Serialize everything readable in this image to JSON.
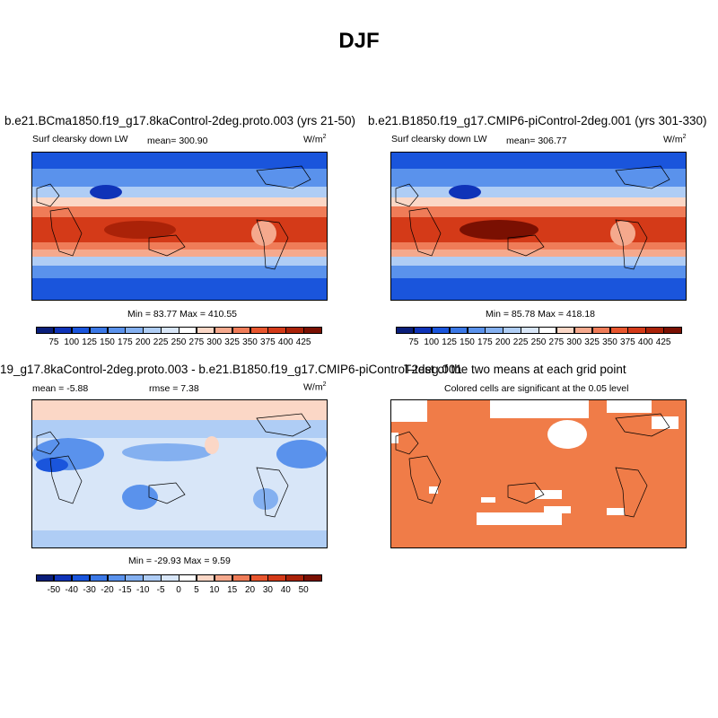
{
  "figure": {
    "title": "DJF"
  },
  "chart_data": [
    {
      "type": "heatmap",
      "title": "b.e21.BCma1850.f19_g17.8kaControl-2deg.proto.003 (yrs 21-50)",
      "left_label": "Surf clearsky down LW",
      "mean_label": "mean= 300.90",
      "units_base": "W/m",
      "units_exp": "2",
      "minmax_label": "Min =  83.77 Max = 410.55",
      "colorbar_levels": [
        "75",
        "100",
        "125",
        "150",
        "175",
        "200",
        "225",
        "250",
        "275",
        "300",
        "325",
        "350",
        "375",
        "400",
        "425"
      ],
      "colorbar_colors": [
        "#0a1e7a",
        "#0f33b8",
        "#1a55dc",
        "#3b78e6",
        "#5a92ec",
        "#84b0f0",
        "#afcdf5",
        "#d8e6f8",
        "#ffffff",
        "#fbd7c6",
        "#f5a98d",
        "#ef7c58",
        "#e8562e",
        "#d43a18",
        "#aa2208",
        "#7a1002"
      ]
    },
    {
      "type": "heatmap",
      "title": "b.e21.B1850.f19_g17.CMIP6-piControl-2deg.001 (yrs 301-330)",
      "left_label": "Surf clearsky down LW",
      "mean_label": "mean= 306.77",
      "units_base": "W/m",
      "units_exp": "2",
      "minmax_label": "Min =  85.78 Max = 418.18",
      "colorbar_levels": [
        "75",
        "100",
        "125",
        "150",
        "175",
        "200",
        "225",
        "250",
        "275",
        "300",
        "325",
        "350",
        "375",
        "400",
        "425"
      ],
      "colorbar_colors": [
        "#0a1e7a",
        "#0f33b8",
        "#1a55dc",
        "#3b78e6",
        "#5a92ec",
        "#84b0f0",
        "#afcdf5",
        "#d8e6f8",
        "#ffffff",
        "#fbd7c6",
        "#f5a98d",
        "#ef7c58",
        "#e8562e",
        "#d43a18",
        "#aa2208",
        "#7a1002"
      ]
    },
    {
      "type": "heatmap",
      "title": "19_g17.8kaControl-2deg.proto.003 - b.e21.B1850.f19_g17.CMIP6-piControl-2deg.001",
      "mean_label": "mean =  -5.88",
      "rmse_label": "rmse =   7.38",
      "units_base": "W/m",
      "units_exp": "2",
      "minmax_label": "Min = -29.93 Max =   9.59",
      "colorbar_levels": [
        "-50",
        "-40",
        "-30",
        "-20",
        "-15",
        "-10",
        "-5",
        "0",
        "5",
        "10",
        "15",
        "20",
        "30",
        "40",
        "50"
      ],
      "colorbar_colors": [
        "#0a1e7a",
        "#0f33b8",
        "#1a55dc",
        "#3b78e6",
        "#5a92ec",
        "#84b0f0",
        "#afcdf5",
        "#d8e6f8",
        "#ffffff",
        "#fbd7c6",
        "#f5a98d",
        "#ef7c58",
        "#e8562e",
        "#d43a18",
        "#aa2208",
        "#7a1002"
      ]
    },
    {
      "type": "heatmap",
      "title": "T-test of the two means at each grid point",
      "subtitle": "Colored cells are significant at the 0.05 level",
      "significant_color": "#f07c48"
    }
  ]
}
